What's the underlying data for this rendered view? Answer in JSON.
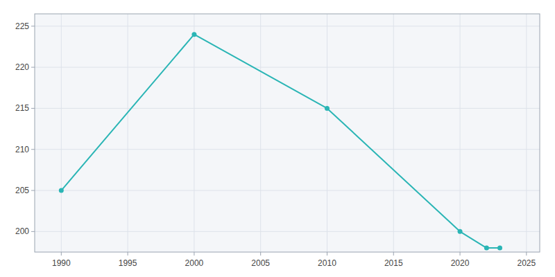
{
  "chart_data": {
    "type": "line",
    "x": [
      1990,
      2000,
      2010,
      2020,
      2022,
      2023
    ],
    "values": [
      205,
      224,
      215,
      200,
      198,
      198
    ],
    "color": "#2ab5b5",
    "marker": "circle",
    "xlim": [
      1988,
      2026
    ],
    "ylim": [
      197.5,
      226.5
    ],
    "xticks": [
      1990,
      1995,
      2000,
      2005,
      2010,
      2015,
      2020,
      2025
    ],
    "yticks": [
      200,
      205,
      210,
      215,
      220,
      225
    ],
    "grid": true
  }
}
